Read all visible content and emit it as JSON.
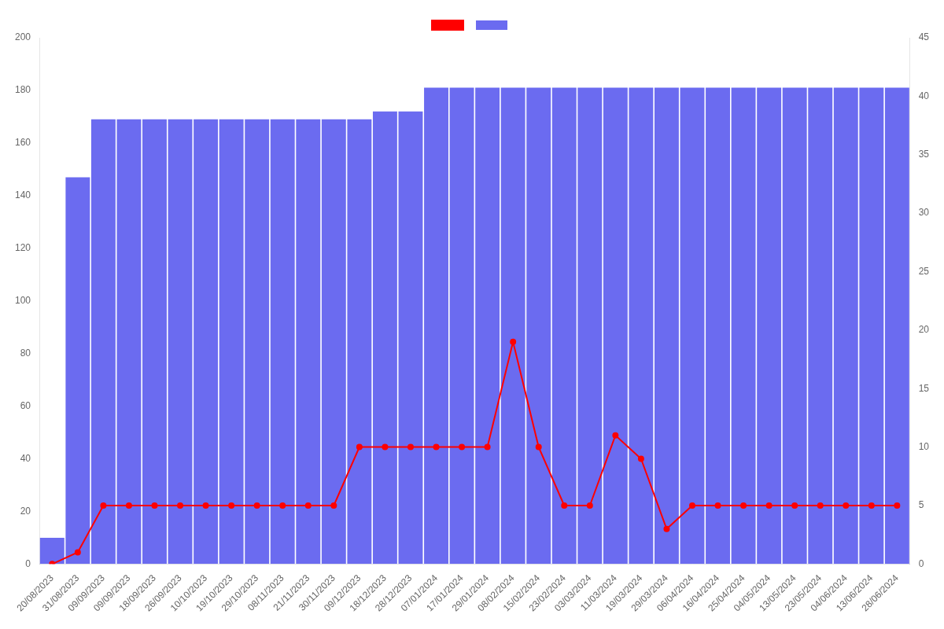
{
  "chart_data": {
    "type": "bar",
    "categories": [
      "20/08/2023",
      "31/08/2023",
      "09/09/2023",
      "09/09/2023",
      "18/09/2023",
      "26/09/2023",
      "10/10/2023",
      "19/10/2023",
      "29/10/2023",
      "08/11/2023",
      "21/11/2023",
      "30/11/2023",
      "09/12/2023",
      "18/12/2023",
      "28/12/2023",
      "07/01/2024",
      "17/01/2024",
      "29/01/2024",
      "08/02/2024",
      "15/02/2024",
      "23/02/2024",
      "03/03/2024",
      "11/03/2024",
      "19/03/2024",
      "29/03/2024",
      "06/04/2024",
      "16/04/2024",
      "25/04/2024",
      "04/05/2024",
      "13/05/2024",
      "23/05/2024",
      "04/06/2024",
      "13/06/2024",
      "28/06/2024"
    ],
    "series": [
      {
        "type": "bar",
        "color": "#6B6BF0",
        "values": [
          10,
          147,
          169,
          169,
          169,
          169,
          169,
          169,
          169,
          169,
          169,
          169,
          169,
          172,
          172,
          181,
          181,
          181,
          181,
          181,
          181,
          181,
          181,
          181,
          181,
          181,
          181,
          181,
          181,
          181,
          181,
          181,
          181,
          181
        ]
      },
      {
        "type": "line",
        "color": "#ff0000",
        "marker": "circle",
        "axis": "y2",
        "values": [
          0,
          1,
          5,
          5,
          5,
          5,
          5,
          5,
          5,
          5,
          5,
          5,
          10,
          10,
          10,
          10,
          10,
          10,
          19,
          10,
          5,
          5,
          11,
          9,
          3,
          5,
          5,
          5,
          5,
          5,
          5,
          5,
          5,
          5
        ]
      }
    ],
    "ylim": [
      0,
      200
    ],
    "yticks": [
      0,
      20,
      40,
      60,
      80,
      100,
      120,
      140,
      160,
      180,
      200
    ],
    "y2lim": [
      0,
      45
    ],
    "y2ticks": [
      0,
      5,
      10,
      15,
      20,
      25,
      30,
      35,
      40,
      45
    ],
    "grid": false,
    "legend": "top"
  }
}
